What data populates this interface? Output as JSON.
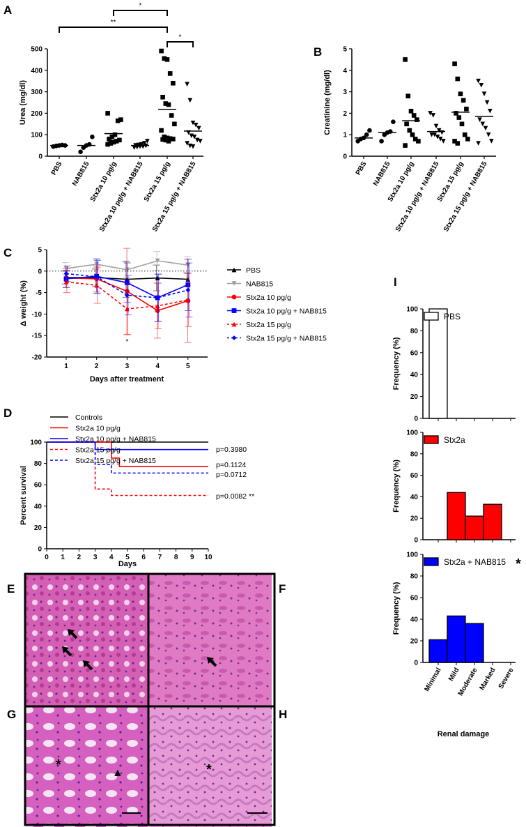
{
  "chart_data": [
    {
      "panel": "A",
      "type": "scatter",
      "ylabel": "Urea (mg/dl)",
      "ylim": [
        0,
        500
      ],
      "yticks": [
        0,
        100,
        200,
        300,
        400,
        500
      ],
      "categories": [
        "PBS",
        "NAB815",
        "Stx2a 10 pg/g",
        "Stx2a 10 pg/g + NAB815",
        "Stx2a 15 pg/g",
        "Stx2a 15 pg/g + NAB815"
      ],
      "markers": [
        "circle",
        "circle",
        "square",
        "triangle-down",
        "square",
        "triangle-down"
      ],
      "values": [
        [
          45,
          48,
          50,
          52,
          50
        ],
        [
          20,
          40,
          50,
          55,
          90
        ],
        [
          55,
          60,
          65,
          70,
          75,
          80,
          90,
          100,
          165,
          170,
          200
        ],
        [
          40,
          42,
          45,
          45,
          48,
          50,
          52,
          55,
          60,
          70
        ],
        [
          490,
          455,
          450,
          385,
          340,
          275,
          245,
          240,
          190,
          150,
          120,
          90,
          85,
          82,
          80,
          78,
          75,
          70
        ],
        [
          335,
          260,
          155,
          145,
          130,
          110,
          95,
          90,
          75,
          70,
          60,
          48,
          45
        ]
      ],
      "means": [
        50,
        50,
        105,
        50,
        217,
        117
      ],
      "significance": [
        {
          "from": 2,
          "to": 4,
          "label": "*"
        },
        {
          "from": 0,
          "to": 4,
          "label": "**"
        },
        {
          "from": 4,
          "to": 5,
          "label": "*"
        }
      ]
    },
    {
      "panel": "B",
      "type": "scatter",
      "ylabel": "Creatinine (mg/dl)",
      "ylim": [
        0,
        5
      ],
      "yticks": [
        0,
        1,
        2,
        3,
        4,
        5
      ],
      "categories": [
        "PBS",
        "NAB815",
        "Stx2a 10 pg/g",
        "Stx2a 10 pg/g + NAB815",
        "Stx2a 15 pg/g",
        "Stx2a 15 pg/g + NAB815"
      ],
      "markers": [
        "circle",
        "circle",
        "square",
        "triangle-down",
        "square",
        "triangle-down"
      ],
      "values": [
        [
          0.7,
          0.8,
          0.85,
          1.0,
          1.2
        ],
        [
          0.7,
          1.0,
          1.1,
          1.15,
          1.6
        ],
        [
          4.5,
          2.8,
          2.1,
          1.9,
          1.7,
          1.5,
          1.2,
          1.0,
          0.8,
          0.7,
          0.5
        ],
        [
          2.0,
          1.9,
          1.4,
          1.2,
          1.1,
          1.0,
          1.0,
          0.9,
          0.8,
          0.7
        ],
        [
          4.3,
          3.6,
          2.9,
          2.6,
          2.2,
          2.0,
          1.8,
          1.5,
          1.0,
          0.8,
          0.7,
          0.6
        ],
        [
          3.5,
          3.3,
          2.9,
          2.5,
          2.1,
          1.7,
          1.5,
          1.3,
          1.0,
          0.7,
          0.6
        ]
      ],
      "means": [
        0.85,
        1.1,
        1.65,
        1.15,
        2.05,
        1.85
      ]
    },
    {
      "panel": "C",
      "type": "line",
      "xlabel": "Days after treatment",
      "ylabel": "Δ weight (%)",
      "x": [
        1,
        2,
        3,
        4,
        5
      ],
      "ylim": [
        -20,
        5
      ],
      "yticks": [
        5,
        0,
        -5,
        -10,
        -15,
        -20
      ],
      "annotation": "*",
      "series": [
        {
          "name": "PBS",
          "color": "#000000",
          "dash": false,
          "marker": "triangle-up",
          "values": [
            -1.5,
            -1.5,
            -1.9,
            -1.6,
            -1.9
          ],
          "sd": [
            1.5,
            2.0,
            4.2,
            3.0,
            1.5
          ]
        },
        {
          "name": "NAB815",
          "color": "#a0a0a0",
          "dash": false,
          "marker": "triangle-down",
          "values": [
            0.6,
            1.6,
            0.3,
            2.4,
            1.4
          ],
          "sd": [
            1.4,
            1.3,
            1.8,
            2.2,
            2.0
          ]
        },
        {
          "name": "Stx2a 10 pg/g",
          "color": "#ff0000",
          "dash": false,
          "marker": "circle",
          "values": [
            -1.6,
            -1.8,
            -4.7,
            -9.2,
            -6.9
          ],
          "sd": [
            2.2,
            3.0,
            10.0,
            6.4,
            9.7
          ]
        },
        {
          "name": "Stx2a 10 pg/g + NAB815",
          "color": "#0000ff",
          "dash": false,
          "marker": "square",
          "values": [
            -1.8,
            -1.2,
            -2.7,
            -6.2,
            -3.2
          ],
          "sd": [
            2.0,
            4.0,
            4.6,
            5.5,
            6.0
          ]
        },
        {
          "name": "Stx2a 15 pg/g",
          "color": "#ff0000",
          "dash": true,
          "marker": "triangle-up",
          "values": [
            -2.5,
            -3.3,
            -8.8,
            -8.1,
            -6.7
          ],
          "sd": [
            2.5,
            4.2,
            6.0,
            5.3,
            6.2
          ]
        },
        {
          "name": "Stx2a 15 pg/g + NAB815",
          "color": "#0000ff",
          "dash": true,
          "marker": "diamond",
          "values": [
            -0.6,
            -1.3,
            -5.6,
            -6.2,
            -4.4
          ],
          "sd": [
            1.8,
            3.8,
            4.6,
            5.5,
            6.3
          ]
        }
      ]
    },
    {
      "panel": "D",
      "type": "line",
      "xlabel": "Days",
      "ylabel": "Percent survival",
      "xlim": [
        0,
        10
      ],
      "xticks": [
        0,
        1,
        2,
        3,
        4,
        5,
        6,
        7,
        8,
        9,
        10
      ],
      "ylim": [
        0,
        100
      ],
      "yticks": [
        0,
        20,
        40,
        60,
        80,
        100
      ],
      "series": [
        {
          "name": "Controls",
          "color": "#000000",
          "dash": false,
          "steps": [
            [
              0,
              100
            ],
            [
              10,
              100
            ]
          ],
          "pvalue": ""
        },
        {
          "name": "Stx2a 10 pg/g",
          "color": "#ff0000",
          "dash": false,
          "steps": [
            [
              0,
              100
            ],
            [
              4,
              100
            ],
            [
              4,
              85
            ],
            [
              4.5,
              85
            ],
            [
              4.5,
              77
            ],
            [
              10,
              77
            ]
          ],
          "pvalue": "p=0.1124"
        },
        {
          "name": "Stx2a 10 pg/g + NAB815",
          "color": "#0000ff",
          "dash": false,
          "steps": [
            [
              0,
              100
            ],
            [
              3,
              100
            ],
            [
              3,
              93
            ],
            [
              10,
              93
            ]
          ],
          "pvalue": "p=0.3980"
        },
        {
          "name": "Stx2a 15 pg/g",
          "color": "#ff0000",
          "dash": true,
          "steps": [
            [
              0,
              100
            ],
            [
              3,
              100
            ],
            [
              3,
              56
            ],
            [
              4,
              56
            ],
            [
              4,
              50
            ],
            [
              10,
              50
            ]
          ],
          "pvalue": "p=0.0082 **"
        },
        {
          "name": "Stx2a 15 pg/g + NAB815",
          "color": "#0000ff",
          "dash": true,
          "steps": [
            [
              0,
              100
            ],
            [
              3,
              100
            ],
            [
              3,
              79
            ],
            [
              4,
              79
            ],
            [
              4,
              71
            ],
            [
              10,
              71
            ]
          ],
          "pvalue": "p=0.0712"
        }
      ]
    },
    {
      "panel": "I",
      "type": "bar",
      "xlabel": "Renal damage",
      "ylabel": "Frequency (%)",
      "categories": [
        "Minimal",
        "Mild",
        "Moderate",
        "Marked",
        "Severe"
      ],
      "ylim": [
        0,
        100
      ],
      "yticks": [
        0,
        20,
        40,
        60,
        80,
        100
      ],
      "series": [
        {
          "name": "PBS",
          "color": "#ffffff",
          "values": [
            100,
            0,
            0,
            0,
            0
          ],
          "mark": ""
        },
        {
          "name": "Stx2a",
          "color": "#ff0000",
          "values": [
            0,
            44,
            22,
            33,
            0
          ],
          "mark": ""
        },
        {
          "name": "Stx2a + NAB815",
          "color": "#0000ff",
          "values": [
            21,
            43,
            36,
            0,
            0
          ],
          "mark": "*"
        }
      ]
    }
  ],
  "panel_labels": [
    "A",
    "B",
    "C",
    "D",
    "E",
    "F",
    "G",
    "H",
    "I"
  ],
  "histology": {
    "annotations": [
      "*",
      "▲",
      "*"
    ]
  }
}
